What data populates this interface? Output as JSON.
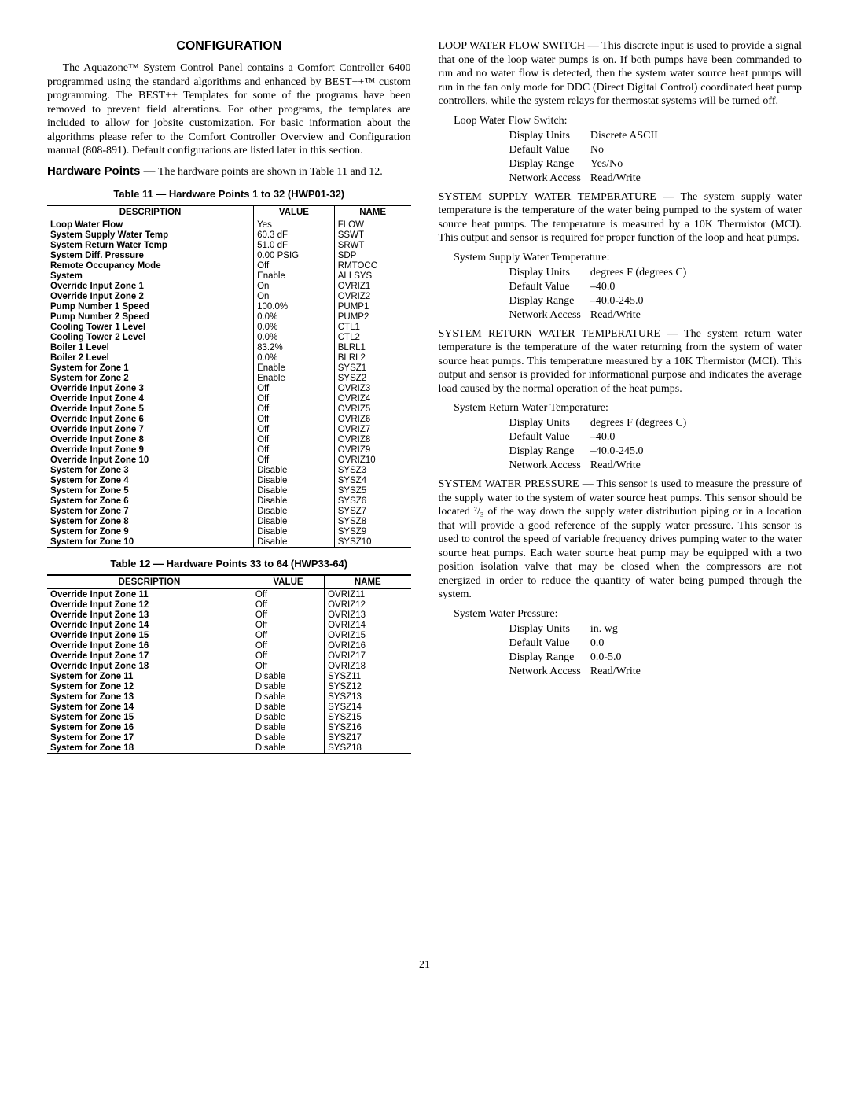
{
  "section_title": "CONFIGURATION",
  "intro_para": "The Aquazone™ System Control Panel contains a Comfort Controller 6400 programmed using the standard algorithms and enhanced by BEST++™ custom programming. The BEST++ Templates for some of the programs have been removed to prevent field alterations. For other programs, the templates are included to allow for jobsite customization. For basic information about the algorithms please refer to the Comfort Controller Overview and Configuration manual (808-891). Default configurations are listed later in this section.",
  "hw_heading": "Hardware Points —",
  "hw_heading_rest": " The hardware points are shown in Table 11 and 12.",
  "table11_caption": "Table 11 — Hardware Points 1 to 32 (HWP01-32)",
  "table12_caption": "Table 12 — Hardware Points 33 to 64 (HWP33-64)",
  "table_headers": {
    "desc": "DESCRIPTION",
    "value": "VALUE",
    "name": "NAME"
  },
  "table11_rows": [
    [
      "Loop Water Flow",
      "Yes",
      "FLOW"
    ],
    [
      "System Supply Water Temp",
      "60.3 dF",
      "SSWT"
    ],
    [
      "System Return Water Temp",
      "51.0 dF",
      "SRWT"
    ],
    [
      "System Diff. Pressure",
      "0.00 PSIG",
      "SDP"
    ],
    [
      "Remote Occupancy Mode",
      "Off",
      "RMTOCC"
    ],
    [
      "System",
      "Enable",
      "ALLSYS"
    ],
    [
      "Override Input Zone 1",
      "On",
      "OVRIZ1"
    ],
    [
      "Override Input Zone 2",
      "On",
      "OVRIZ2"
    ],
    [
      "Pump Number 1 Speed",
      "100.0%",
      "PUMP1"
    ],
    [
      "Pump Number 2 Speed",
      "0.0%",
      "PUMP2"
    ],
    [
      "Cooling Tower 1 Level",
      "0.0%",
      "CTL1"
    ],
    [
      "Cooling Tower 2 Level",
      "0.0%",
      "CTL2"
    ],
    [
      "Boiler 1 Level",
      "83.2%",
      "BLRL1"
    ],
    [
      "Boiler 2 Level",
      "0.0%",
      "BLRL2"
    ],
    [
      "System for Zone 1",
      "Enable",
      "SYSZ1"
    ],
    [
      "System for Zone 2",
      "Enable",
      "SYSZ2"
    ],
    [
      "Override Input Zone 3",
      "Off",
      "OVRIZ3"
    ],
    [
      "Override Input Zone 4",
      "Off",
      "OVRIZ4"
    ],
    [
      "Override Input Zone 5",
      "Off",
      "OVRIZ5"
    ],
    [
      "Override Input Zone 6",
      "Off",
      "OVRIZ6"
    ],
    [
      "Override Input Zone 7",
      "Off",
      "OVRIZ7"
    ],
    [
      "Override Input Zone 8",
      "Off",
      "OVRIZ8"
    ],
    [
      "Override Input Zone 9",
      "Off",
      "OVRIZ9"
    ],
    [
      "Override Input Zone 10",
      "Off",
      "OVRIZ10"
    ],
    [
      "System for Zone 3",
      "Disable",
      "SYSZ3"
    ],
    [
      "System for Zone 4",
      "Disable",
      "SYSZ4"
    ],
    [
      "System for Zone 5",
      "Disable",
      "SYSZ5"
    ],
    [
      "System for Zone 6",
      "Disable",
      "SYSZ6"
    ],
    [
      "System for Zone 7",
      "Disable",
      "SYSZ7"
    ],
    [
      "System for Zone 8",
      "Disable",
      "SYSZ8"
    ],
    [
      "System for Zone 9",
      "Disable",
      "SYSZ9"
    ],
    [
      "System for Zone 10",
      "Disable",
      "SYSZ10"
    ]
  ],
  "table12_rows": [
    [
      "Override Input Zone 11",
      "Off",
      "OVRIZ11"
    ],
    [
      "Override Input Zone 12",
      "Off",
      "OVRIZ12"
    ],
    [
      "Override Input Zone 13",
      "Off",
      "OVRIZ13"
    ],
    [
      "Override Input Zone 14",
      "Off",
      "OVRIZ14"
    ],
    [
      "Override Input Zone 15",
      "Off",
      "OVRIZ15"
    ],
    [
      "Override Input Zone 16",
      "Off",
      "OVRIZ16"
    ],
    [
      "Override Input Zone 17",
      "Off",
      "OVRIZ17"
    ],
    [
      "Override Input Zone 18",
      "Off",
      "OVRIZ18"
    ],
    [
      "System for Zone 11",
      "Disable",
      "SYSZ11"
    ],
    [
      "System for Zone 12",
      "Disable",
      "SYSZ12"
    ],
    [
      "System for Zone 13",
      "Disable",
      "SYSZ13"
    ],
    [
      "System for Zone 14",
      "Disable",
      "SYSZ14"
    ],
    [
      "System for Zone 15",
      "Disable",
      "SYSZ15"
    ],
    [
      "System for Zone 16",
      "Disable",
      "SYSZ16"
    ],
    [
      "System for Zone 17",
      "Disable",
      "SYSZ17"
    ],
    [
      "System for Zone 18",
      "Disable",
      "SYSZ18"
    ]
  ],
  "right": {
    "lwfs_para": "LOOP WATER FLOW SWITCH — This discrete input is used to provide a signal that one of the loop water pumps is on. If both pumps have been commanded to run and no water flow is detected, then the system water source heat pumps will run in the fan only mode for DDC (Direct Digital Control) coordinated heat pump controllers, while the system relays for thermostat systems will be turned off.",
    "lwfs_title": "Loop Water Flow Switch:",
    "lwfs_params": [
      [
        "Display Units",
        "Discrete ASCII"
      ],
      [
        "Default Value",
        "No"
      ],
      [
        "Display Range",
        "Yes/No"
      ],
      [
        "Network Access",
        "Read/Write"
      ]
    ],
    "sswt_para": "SYSTEM SUPPLY WATER TEMPERATURE — The system supply water temperature is the temperature of the water being pumped to the system of water source heat pumps. The temperature is measured by a 10K Thermistor (MCI). This output and sensor is required for proper function of the loop and heat pumps.",
    "sswt_title": "System Supply Water Temperature:",
    "sswt_params": [
      [
        "Display Units",
        "degrees F (degrees C)"
      ],
      [
        "Default Value",
        "–40.0"
      ],
      [
        "Display Range",
        "–40.0-245.0"
      ],
      [
        "Network Access",
        "Read/Write"
      ]
    ],
    "srwt_para": "SYSTEM RETURN WATER TEMPERATURE — The system return water temperature is the temperature of the water returning from the system of water source heat pumps. This temperature measured by a 10K Thermistor (MCI). This output and sensor is provided for informational purpose and indicates the average load caused by the normal operation of the heat pumps.",
    "srwt_title": "System Return Water Temperature:",
    "srwt_params": [
      [
        "Display Units",
        "degrees F (degrees C)"
      ],
      [
        "Default Value",
        "–40.0"
      ],
      [
        "Display Range",
        "–40.0-245.0"
      ],
      [
        "Network Access",
        "Read/Write"
      ]
    ],
    "swp_para": "SYSTEM WATER PRESSURE — This sensor is used to measure the pressure of the supply water to the system of water source heat pumps. This sensor should be located ²/₃ of the way down the supply water distribution piping or in a location that will provide a good reference of the supply water pressure. This sensor is used to control the speed of variable frequency drives pumping water to the water source heat pumps. Each water source heat pump may be equipped with a two position isolation valve that may be closed when the compressors are not energized in order to reduce the quantity of water being pumped through the system.",
    "swp_title": "System Water Pressure:",
    "swp_params": [
      [
        "Display Units",
        "in. wg"
      ],
      [
        "Default Value",
        "0.0"
      ],
      [
        "Display Range",
        "0.0-5.0"
      ],
      [
        "Network Access",
        "Read/Write"
      ]
    ]
  },
  "page_number": "21"
}
